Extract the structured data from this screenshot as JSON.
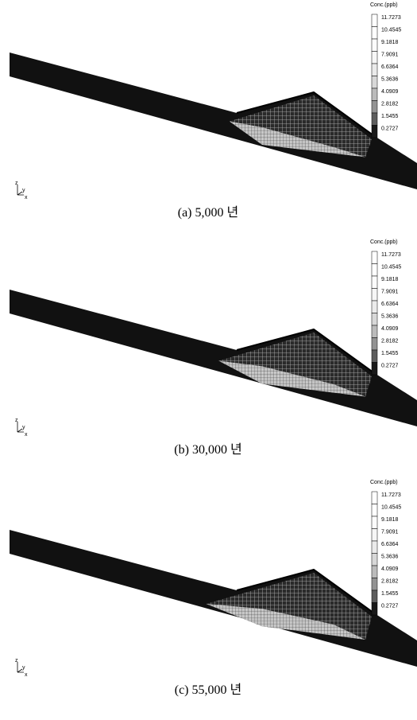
{
  "panels": [
    {
      "caption": "(a) 5,000 년",
      "legend": {
        "title": "Conc.(ppb)",
        "levels": [
          "11.7273",
          "10.4545",
          "9.1818",
          "7.9091",
          "6.6364",
          "5.3636",
          "4.0909",
          "2.8182",
          "1.5455",
          "0.2727"
        ]
      },
      "axes": [
        "z",
        "y",
        "x"
      ]
    },
    {
      "caption": "(b) 30,000 년",
      "legend": {
        "title": "Conc.(ppb)",
        "levels": [
          "11.7273",
          "10.4545",
          "9.1818",
          "7.9091",
          "6.6364",
          "5.3636",
          "4.0909",
          "2.8182",
          "1.5455",
          "0.2727"
        ]
      },
      "axes": [
        "z",
        "y",
        "x"
      ]
    },
    {
      "caption": "(c) 55,000 년",
      "legend": {
        "title": "Conc.(ppb)",
        "levels": [
          "11.7273",
          "10.4545",
          "9.1818",
          "7.9091",
          "6.6364",
          "5.3636",
          "4.0909",
          "2.8182",
          "1.5455",
          "0.2727"
        ]
      },
      "axes": [
        "z",
        "y",
        "x"
      ]
    }
  ]
}
